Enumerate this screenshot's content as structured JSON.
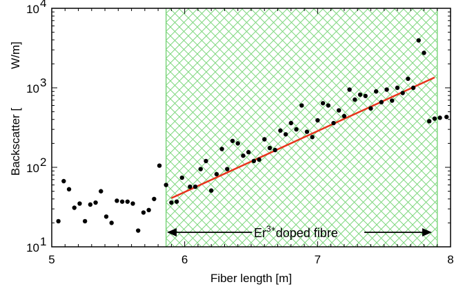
{
  "chart_data": {
    "type": "scatter",
    "xlabel": "Fiber length [m]",
    "ylabel_left": "Backscatter [",
    "ylabel_right": "W/m]",
    "xlim": [
      5,
      8
    ],
    "ylim": [
      10,
      10000
    ],
    "yscale": "log",
    "x_ticks": [
      "5",
      "6",
      "7",
      "8"
    ],
    "x_tick_values": [
      5,
      6,
      7,
      8
    ],
    "y_tick_values": [
      10,
      100,
      1000,
      10000
    ],
    "y_ticks": [
      {
        "base": "10",
        "exp": "1"
      },
      {
        "base": "10",
        "exp": "2"
      },
      {
        "base": "10",
        "exp": "3"
      },
      {
        "base": "10",
        "exp": "4"
      }
    ],
    "region": {
      "x_start": 5.86,
      "x_end": 7.9,
      "fill_color": "#7ed67e",
      "annotation_base": "Er",
      "annotation_sup": "3+",
      "annotation_rest": "doped fibre"
    },
    "fit_line": {
      "color": "#e8341c",
      "x": [
        5.9,
        7.88
      ],
      "y": [
        41,
        1350
      ]
    },
    "points": {
      "color": "#000000",
      "x": [
        5.05,
        5.09,
        5.13,
        5.17,
        5.21,
        5.25,
        5.29,
        5.33,
        5.37,
        5.41,
        5.45,
        5.49,
        5.53,
        5.57,
        5.61,
        5.65,
        5.69,
        5.73,
        5.77,
        5.81,
        5.86,
        5.9,
        5.94,
        5.98,
        6.04,
        6.08,
        6.12,
        6.16,
        6.2,
        6.24,
        6.28,
        6.32,
        6.36,
        6.4,
        6.44,
        6.48,
        6.52,
        6.56,
        6.6,
        6.64,
        6.68,
        6.72,
        6.76,
        6.8,
        6.84,
        6.88,
        6.92,
        6.96,
        7.0,
        7.04,
        7.08,
        7.12,
        7.16,
        7.2,
        7.24,
        7.28,
        7.32,
        7.36,
        7.4,
        7.44,
        7.48,
        7.52,
        7.56,
        7.6,
        7.64,
        7.68,
        7.72,
        7.76,
        7.8,
        7.84,
        7.88,
        7.92,
        7.97
      ],
      "y": [
        21,
        67,
        53,
        31,
        35,
        21,
        34,
        36,
        50,
        24,
        20,
        38,
        37,
        37,
        35,
        16,
        27,
        29,
        40,
        105,
        60,
        36,
        37,
        74,
        57,
        57,
        95,
        120,
        51,
        82,
        170,
        95,
        215,
        200,
        140,
        155,
        120,
        125,
        225,
        175,
        165,
        290,
        260,
        360,
        300,
        600,
        280,
        240,
        390,
        640,
        600,
        360,
        520,
        440,
        950,
        710,
        820,
        790,
        550,
        900,
        660,
        950,
        690,
        1000,
        860,
        1300,
        1000,
        3950,
        2750,
        380,
        410,
        420,
        430
      ]
    }
  }
}
